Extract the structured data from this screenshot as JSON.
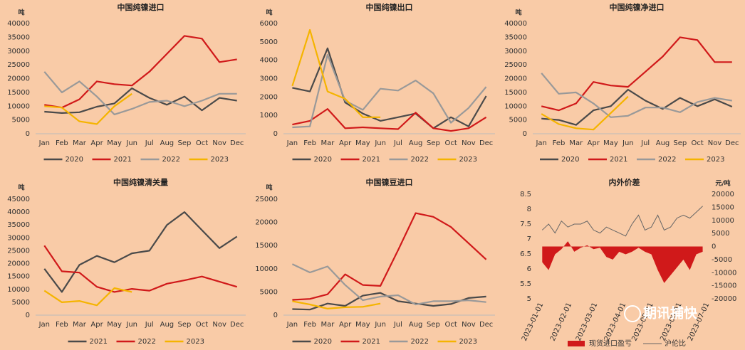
{
  "chart_data": [
    {
      "type": "line",
      "title": "中国纯镍进口",
      "y_label": "吨",
      "categories": [
        "Jan",
        "Feb",
        "Mar",
        "Apr",
        "May",
        "Jun",
        "Jul",
        "Aug",
        "Sep",
        "Oct",
        "Nov",
        "Dec"
      ],
      "ylim": [
        0,
        40000
      ],
      "yticks": [
        0,
        5000,
        10000,
        15000,
        20000,
        25000,
        30000,
        35000,
        40000
      ],
      "series": [
        {
          "name": "2020",
          "color": "#4a4a4a",
          "values": [
            8000,
            7500,
            7800,
            9800,
            11000,
            16500,
            13000,
            10500,
            13500,
            8500,
            13000,
            12000
          ]
        },
        {
          "name": "2021",
          "color": "#d0191a",
          "values": [
            10500,
            9500,
            12500,
            19000,
            18000,
            17500,
            22500,
            29000,
            35500,
            34500,
            26000,
            27000
          ]
        },
        {
          "name": "2022",
          "color": "#999999",
          "values": [
            22500,
            15000,
            19000,
            13500,
            7000,
            9000,
            11500,
            12000,
            10000,
            12000,
            14500,
            14500
          ]
        },
        {
          "name": "2023",
          "color": "#f5b400",
          "values": [
            10000,
            9500,
            4500,
            3500,
            10000,
            14500,
            null,
            null,
            null,
            null,
            null,
            null
          ]
        }
      ]
    },
    {
      "type": "line",
      "title": "中国纯镍出口",
      "y_label": "吨",
      "categories": [
        "Jan",
        "Feb",
        "Mar",
        "Apr",
        "May",
        "Jun",
        "Jul",
        "Aug",
        "Sep",
        "Oct",
        "Nov",
        "Dec"
      ],
      "ylim": [
        0,
        6000
      ],
      "yticks": [
        0,
        1000,
        2000,
        3000,
        4000,
        5000,
        6000
      ],
      "series": [
        {
          "name": "2020",
          "color": "#4a4a4a",
          "values": [
            2500,
            2300,
            4650,
            1700,
            1100,
            700,
            900,
            1100,
            300,
            900,
            400,
            2050
          ]
        },
        {
          "name": "2021",
          "color": "#d0191a",
          "values": [
            500,
            700,
            1350,
            300,
            350,
            300,
            250,
            1150,
            300,
            150,
            300,
            900
          ]
        },
        {
          "name": "2022",
          "color": "#999999",
          "values": [
            350,
            400,
            4300,
            1800,
            1300,
            2450,
            2350,
            2900,
            2200,
            600,
            1400,
            2550
          ]
        },
        {
          "name": "2023",
          "color": "#f5b400",
          "values": [
            2600,
            5650,
            2300,
            1900,
            900,
            900,
            null,
            null,
            null,
            null,
            null,
            null
          ]
        }
      ]
    },
    {
      "type": "line",
      "title": "中国纯镍净进口",
      "y_label": "吨",
      "categories": [
        "Jan",
        "Feb",
        "Mar",
        "Apr",
        "May",
        "Jun",
        "Jul",
        "Aug",
        "Sep",
        "Oct",
        "Nov",
        "Dec"
      ],
      "ylim": [
        0,
        40000
      ],
      "yticks": [
        0,
        5000,
        10000,
        15000,
        20000,
        25000,
        30000,
        35000,
        40000
      ],
      "series": [
        {
          "name": "2020",
          "color": "#4a4a4a",
          "values": [
            5500,
            5000,
            3200,
            8500,
            10000,
            16000,
            12000,
            9000,
            13000,
            10000,
            12500,
            9800
          ]
        },
        {
          "name": "2021",
          "color": "#d0191a",
          "values": [
            10000,
            8500,
            11000,
            18800,
            17500,
            17000,
            22500,
            28000,
            35000,
            34000,
            26000,
            26000
          ]
        },
        {
          "name": "2022",
          "color": "#999999",
          "values": [
            22000,
            14500,
            15000,
            11000,
            6000,
            6500,
            9500,
            9500,
            7800,
            11500,
            13000,
            12000
          ]
        },
        {
          "name": "2023",
          "color": "#f5b400",
          "values": [
            7200,
            3500,
            2000,
            1500,
            7500,
            13500,
            null,
            null,
            null,
            null,
            null,
            null
          ]
        }
      ]
    },
    {
      "type": "line",
      "title": "中国纯镍清关量",
      "y_label": "吨",
      "categories": [
        "Jan",
        "Feb",
        "Mar",
        "Apr",
        "May",
        "Jun",
        "Jul",
        "Aug",
        "Sep",
        "Oct",
        "Nov",
        "Dec"
      ],
      "ylim": [
        0,
        45000
      ],
      "yticks": [
        0,
        5000,
        10000,
        15000,
        20000,
        25000,
        30000,
        35000,
        40000,
        45000
      ],
      "series": [
        {
          "name": "2021",
          "color": "#4a4a4a",
          "values": [
            18000,
            9000,
            19500,
            23000,
            20500,
            24000,
            25000,
            35000,
            40000,
            33000,
            26000,
            30500
          ]
        },
        {
          "name": "2022",
          "color": "#d0191a",
          "values": [
            27000,
            17000,
            16500,
            11000,
            9000,
            10200,
            9500,
            12200,
            13500,
            15000,
            13000,
            11000
          ]
        },
        {
          "name": "2023",
          "color": "#f5b400",
          "values": [
            9500,
            5000,
            5500,
            3800,
            10500,
            9000,
            null,
            null,
            null,
            null,
            null,
            null
          ]
        }
      ]
    },
    {
      "type": "line",
      "title": "中国镍豆进口",
      "y_label": "吨",
      "categories": [
        "Jan",
        "Feb",
        "Mar",
        "Apr",
        "May",
        "Jun",
        "Jul",
        "Aug",
        "Sep",
        "Oct",
        "Nov",
        "Dec"
      ],
      "ylim": [
        0,
        25000
      ],
      "yticks": [
        0,
        5000,
        10000,
        15000,
        20000,
        25000
      ],
      "series": [
        {
          "name": "2020",
          "color": "#4a4a4a",
          "values": [
            1300,
            1200,
            2500,
            2000,
            4200,
            4800,
            3000,
            2500,
            2000,
            2400,
            3700,
            4000
          ]
        },
        {
          "name": "2021",
          "color": "#d0191a",
          "values": [
            3300,
            3500,
            4500,
            8800,
            6500,
            6300,
            14000,
            22000,
            21200,
            19000,
            15500,
            12000
          ]
        },
        {
          "name": "2022",
          "color": "#999999",
          "values": [
            11000,
            9200,
            10500,
            6500,
            3200,
            4000,
            4300,
            2300,
            3000,
            3000,
            3200,
            2800
          ]
        },
        {
          "name": "2023",
          "color": "#f5b400",
          "values": [
            3000,
            2300,
            1400,
            1700,
            1800,
            2500,
            null,
            null,
            null,
            null,
            null,
            null
          ]
        }
      ]
    },
    {
      "type": "combo",
      "title": "内外价差",
      "y2_label": "元/吨",
      "watermark": "期讯捕快",
      "x": [
        "2023-01-02",
        "2023-01-09",
        "2023-01-16",
        "2023-01-23",
        "2023-01-30",
        "2023-02-06",
        "2023-02-13",
        "2023-02-20",
        "2023-02-27",
        "2023-03-06",
        "2023-03-13",
        "2023-03-20",
        "2023-03-27",
        "2023-04-03",
        "2023-04-10",
        "2023-04-17",
        "2023-04-24",
        "2023-05-01",
        "2023-05-08",
        "2023-05-15",
        "2023-05-22",
        "2023-05-29",
        "2023-06-05",
        "2023-06-12",
        "2023-06-19",
        "2023-06-26"
      ],
      "xlim": [
        "2023-01-01",
        "2023-07-01"
      ],
      "xticks": [
        "2023-01-01",
        "2023-02-01",
        "2023-03-01",
        "2023-04-01",
        "2023-05-01",
        "2023-06-01",
        "2023-07-01"
      ],
      "ylim": [
        5,
        8.5
      ],
      "yticks": [
        5,
        5.5,
        6,
        6.5,
        7,
        7.5,
        8,
        8.5
      ],
      "y2lim": [
        -20000,
        20000
      ],
      "y2ticks": [
        -20000,
        -15000,
        -10000,
        -5000,
        0,
        5000,
        10000,
        15000,
        20000
      ],
      "series": [
        {
          "name": "现货进口盈亏",
          "color": "#d0191a",
          "type": "area",
          "axis": "y2",
          "values": [
            -6000,
            -9000,
            -3000,
            -1000,
            2000,
            -2000,
            -500,
            500,
            -1000,
            -500,
            -4000,
            -5000,
            -2000,
            -3000,
            -2000,
            -500,
            -2000,
            -3000,
            -9000,
            -14000,
            -11000,
            -8000,
            -5000,
            -9000,
            -3000,
            -2000
          ]
        },
        {
          "name": "沪伦比",
          "color": "#666666",
          "type": "line",
          "values": [
            7.3,
            7.5,
            7.2,
            7.6,
            7.4,
            7.5,
            7.5,
            7.6,
            7.3,
            7.2,
            7.4,
            7.3,
            7.2,
            7.1,
            7.5,
            7.8,
            7.3,
            7.4,
            7.8,
            7.3,
            7.4,
            7.7,
            7.8,
            7.7,
            7.9,
            8.1
          ]
        }
      ]
    }
  ]
}
